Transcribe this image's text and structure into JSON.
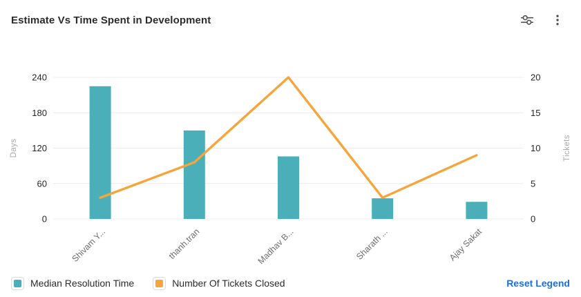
{
  "header": {
    "title": "Estimate Vs Time Spent in Development"
  },
  "chart_data": {
    "type": "combo",
    "categories": [
      "Shivam Y...",
      "thanh.tran",
      "Madhav B...",
      "Sharath ...",
      "Ajay Sakat"
    ],
    "series": [
      {
        "name": "Median Resolution Time",
        "type": "bar",
        "axis": "left",
        "color": "#4AAFB9",
        "values": [
          225,
          150,
          106,
          35,
          29
        ]
      },
      {
        "name": "Number Of Tickets Closed",
        "type": "line",
        "axis": "right",
        "color": "#F6A53B",
        "values": [
          3,
          8,
          20,
          3,
          9
        ]
      }
    ],
    "left_axis": {
      "title": "Days",
      "min": 0,
      "max": 240,
      "ticks": [
        0,
        60,
        120,
        180,
        240
      ]
    },
    "right_axis": {
      "title": "Tickets",
      "min": 0,
      "max": 20,
      "ticks": [
        0,
        5,
        10,
        15,
        20
      ]
    },
    "grid": true,
    "legend_position": "bottom-left",
    "x_label_rotation": 45
  },
  "legend": {
    "items": [
      {
        "label": "Median Resolution Time",
        "color": "#4AAFB9"
      },
      {
        "label": "Number Of Tickets Closed",
        "color": "#F6A53B"
      }
    ],
    "reset_label": "Reset Legend"
  },
  "colors": {
    "bar": "#4AAFB9",
    "line": "#F6A53B",
    "link": "#1C6FD9",
    "gridline": "#ECECEC",
    "icon": "#4F4F4F"
  }
}
